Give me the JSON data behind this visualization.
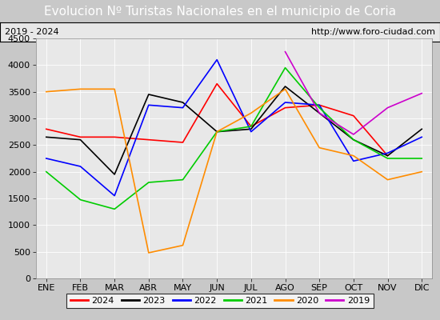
{
  "title": "Evolucion Nº Turistas Nacionales en el municipio de Coria",
  "subtitle_left": "2019 - 2024",
  "subtitle_right": "http://www.foro-ciudad.com",
  "months": [
    "ENE",
    "FEB",
    "MAR",
    "ABR",
    "MAY",
    "JUN",
    "JUL",
    "AGO",
    "SEP",
    "OCT",
    "NOV",
    "DIC"
  ],
  "series": {
    "2024": [
      2800,
      2650,
      2650,
      2600,
      2550,
      3650,
      2850,
      3200,
      3250,
      3050,
      2300,
      null
    ],
    "2023": [
      2650,
      2600,
      1950,
      3450,
      3300,
      2750,
      2800,
      3600,
      3100,
      2600,
      2300,
      2800
    ],
    "2022": [
      2250,
      2100,
      1550,
      3250,
      3200,
      4100,
      2750,
      3300,
      3250,
      2200,
      2350,
      2650
    ],
    "2021": [
      2000,
      1475,
      1300,
      1800,
      1850,
      2750,
      2850,
      3950,
      3200,
      2600,
      2250,
      2250
    ],
    "2020": [
      3500,
      3550,
      3550,
      480,
      620,
      2750,
      3100,
      3550,
      2450,
      2300,
      1850,
      2000
    ],
    "2019": [
      null,
      null,
      null,
      null,
      null,
      null,
      null,
      4250,
      3100,
      2700,
      3200,
      3470
    ]
  },
  "colors": {
    "2024": "#ff0000",
    "2023": "#000000",
    "2022": "#0000ff",
    "2021": "#00cc00",
    "2020": "#ff8c00",
    "2019": "#cc00cc"
  },
  "ylim": [
    0,
    4500
  ],
  "yticks": [
    0,
    500,
    1000,
    1500,
    2000,
    2500,
    3000,
    3500,
    4000,
    4500
  ],
  "title_bg": "#4a90d9",
  "title_color": "#ffffff",
  "title_fontsize": 11,
  "subtitle_fontsize": 8,
  "axis_fontsize": 8,
  "legend_fontsize": 8,
  "legend_order": [
    "2024",
    "2023",
    "2022",
    "2021",
    "2020",
    "2019"
  ],
  "figure_bg": "#c8c8c8",
  "plot_bg": "#e8e8e8"
}
